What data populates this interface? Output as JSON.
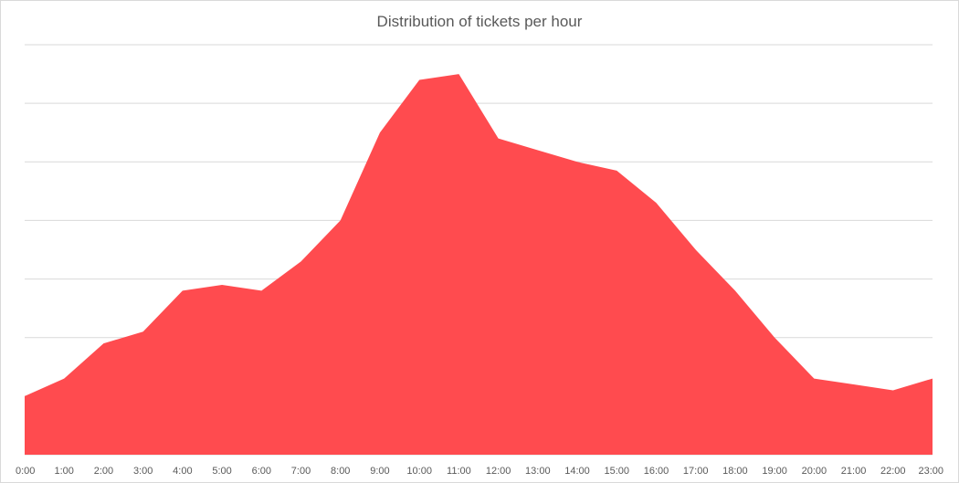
{
  "chart_data": {
    "type": "area",
    "title": "Distribution of tickets per hour",
    "categories": [
      "0:00",
      "1:00",
      "2:00",
      "3:00",
      "4:00",
      "5:00",
      "6:00",
      "7:00",
      "8:00",
      "9:00",
      "10:00",
      "11:00",
      "12:00",
      "13:00",
      "14:00",
      "15:00",
      "16:00",
      "17:00",
      "18:00",
      "19:00",
      "20:00",
      "21:00",
      "22:00",
      "23:00"
    ],
    "series": [
      {
        "values": [
          1.0,
          1.3,
          1.9,
          2.1,
          2.8,
          2.9,
          2.8,
          3.3,
          4.0,
          5.5,
          6.4,
          6.5,
          5.4,
          5.2,
          5.0,
          4.85,
          4.3,
          3.5,
          2.8,
          2.0,
          1.3,
          1.2,
          1.1,
          1.3
        ]
      }
    ],
    "ylim": [
      0,
      7
    ],
    "y_gridlines": [
      0,
      1,
      2,
      3,
      4,
      5,
      6,
      7
    ],
    "grid": true,
    "y_tick_labels_shown": false,
    "legend": "none",
    "colors": {
      "area": "#ff4b4f",
      "grid": "#d9d9d9",
      "text": "#595959"
    }
  }
}
